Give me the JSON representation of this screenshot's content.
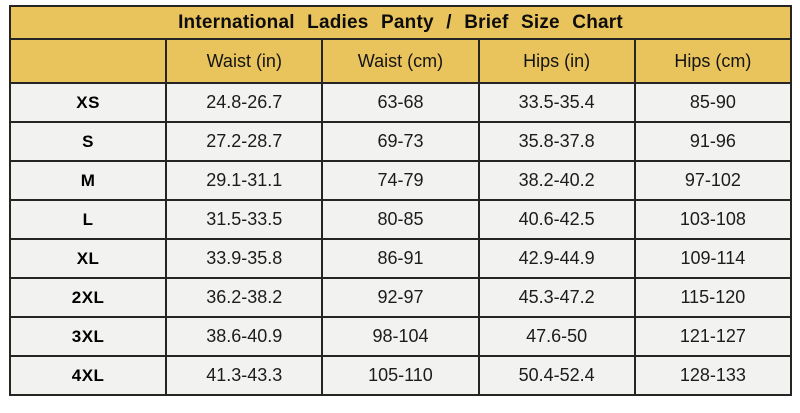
{
  "colors": {
    "header_bg": "#e9c45c",
    "row_bg": "#f2f2f0",
    "border": "#262524",
    "text": "#1c1c1c"
  },
  "chart_data": {
    "type": "table",
    "title": "International Ladies Panty / Brief Size Chart",
    "columns": [
      "",
      "Waist (in)",
      "Waist (cm)",
      "Hips (in)",
      "Hips (cm)"
    ],
    "rows": [
      [
        "XS",
        "24.8-26.7",
        "63-68",
        "33.5-35.4",
        "85-90"
      ],
      [
        "S",
        "27.2-28.7",
        "69-73",
        "35.8-37.8",
        "91-96"
      ],
      [
        "M",
        "29.1-31.1",
        "74-79",
        "38.2-40.2",
        "97-102"
      ],
      [
        "L",
        "31.5-33.5",
        "80-85",
        "40.6-42.5",
        "103-108"
      ],
      [
        "XL",
        "33.9-35.8",
        "86-91",
        "42.9-44.9",
        "109-114"
      ],
      [
        "2XL",
        "36.2-38.2",
        "92-97",
        "45.3-47.2",
        "115-120"
      ],
      [
        "3XL",
        "38.6-40.9",
        "98-104",
        "47.6-50",
        "121-127"
      ],
      [
        "4XL",
        "41.3-43.3",
        "105-110",
        "50.4-52.4",
        "128-133"
      ]
    ]
  }
}
